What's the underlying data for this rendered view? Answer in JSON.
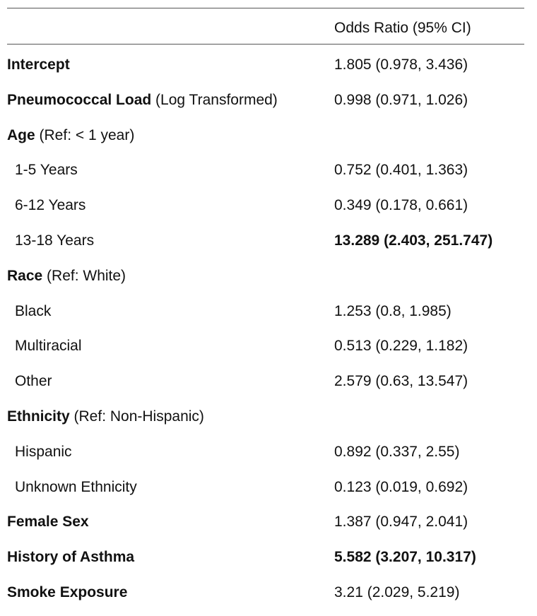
{
  "header": {
    "label_column": "",
    "value_column": "Odds Ratio (95% CI)"
  },
  "rows": [
    {
      "label": "Intercept",
      "ref": "",
      "value": "1.805 (0.978, 3.436)",
      "label_bold": true,
      "value_bold": false,
      "indent": false
    },
    {
      "label": "Pneumococcal Load",
      "ref": " (Log Transformed)",
      "value": "0.998 (0.971, 1.026)",
      "label_bold": true,
      "value_bold": false,
      "indent": false
    },
    {
      "label": "Age",
      "ref": " (Ref: < 1 year)",
      "value": "",
      "label_bold": true,
      "value_bold": false,
      "indent": false
    },
    {
      "label": "1-5 Years",
      "ref": "",
      "value": "0.752 (0.401, 1.363)",
      "label_bold": false,
      "value_bold": false,
      "indent": true
    },
    {
      "label": "6-12 Years",
      "ref": "",
      "value": "0.349 (0.178, 0.661)",
      "label_bold": false,
      "value_bold": false,
      "indent": true
    },
    {
      "label": "13-18 Years",
      "ref": "",
      "value": "13.289 (2.403, 251.747)",
      "label_bold": false,
      "value_bold": true,
      "indent": true
    },
    {
      "label": "Race",
      "ref": " (Ref: White)",
      "value": "",
      "label_bold": true,
      "value_bold": false,
      "indent": false
    },
    {
      "label": "Black",
      "ref": "",
      "value": "1.253 (0.8, 1.985)",
      "label_bold": false,
      "value_bold": false,
      "indent": true
    },
    {
      "label": "Multiracial",
      "ref": "",
      "value": "0.513 (0.229, 1.182)",
      "label_bold": false,
      "value_bold": false,
      "indent": true
    },
    {
      "label": "Other",
      "ref": "",
      "value": "2.579 (0.63, 13.547)",
      "label_bold": false,
      "value_bold": false,
      "indent": true
    },
    {
      "label": "Ethnicity",
      "ref": " (Ref: Non-Hispanic)",
      "value": "",
      "label_bold": true,
      "value_bold": false,
      "indent": false
    },
    {
      "label": "Hispanic",
      "ref": "",
      "value": "0.892 (0.337, 2.55)",
      "label_bold": false,
      "value_bold": false,
      "indent": true
    },
    {
      "label": "Unknown Ethnicity",
      "ref": "",
      "value": "0.123 (0.019, 0.692)",
      "label_bold": false,
      "value_bold": false,
      "indent": true
    },
    {
      "label": "Female Sex",
      "ref": "",
      "value": "1.387 (0.947, 2.041)",
      "label_bold": true,
      "value_bold": false,
      "indent": false
    },
    {
      "label": "History of Asthma",
      "ref": "",
      "value": "5.582 (3.207, 10.317)",
      "label_bold": true,
      "value_bold": true,
      "indent": false
    },
    {
      "label": "Smoke Exposure",
      "ref": "",
      "value": "3.21 (2.029, 5.219)",
      "label_bold": true,
      "value_bold": false,
      "indent": false
    }
  ]
}
